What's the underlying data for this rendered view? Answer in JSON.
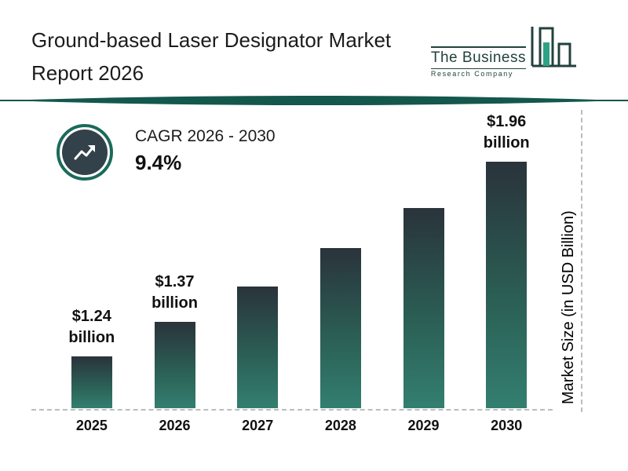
{
  "header": {
    "title_line1": "Ground-based Laser Designator Market",
    "title_line2": "Report 2026"
  },
  "logo": {
    "line1": "The Business",
    "line2": "Research Company"
  },
  "cagr": {
    "label": "CAGR 2026 - 2030",
    "value": "9.4%"
  },
  "chart_data": {
    "type": "bar",
    "title": "Ground-based Laser Designator Market Report 2026",
    "categories": [
      "2025",
      "2026",
      "2027",
      "2028",
      "2029",
      "2030"
    ],
    "values": [
      1.24,
      1.37,
      1.5,
      1.64,
      1.79,
      1.96
    ],
    "unit": "USD Billion",
    "ylabel": "Market Size (in USD Billion)",
    "xlabel": "",
    "bar_labels": [
      "$1.24 billion",
      "$1.37 billion",
      null,
      null,
      null,
      "$1.96 billion"
    ],
    "legend": "none",
    "grid": "off",
    "colors": {
      "bar_top": "#2a333b",
      "bar_bottom": "#337f70",
      "accent_teal": "#1b6a5a",
      "badge_circle": "#33424a",
      "dashed_line": "#b9bdbf"
    }
  }
}
